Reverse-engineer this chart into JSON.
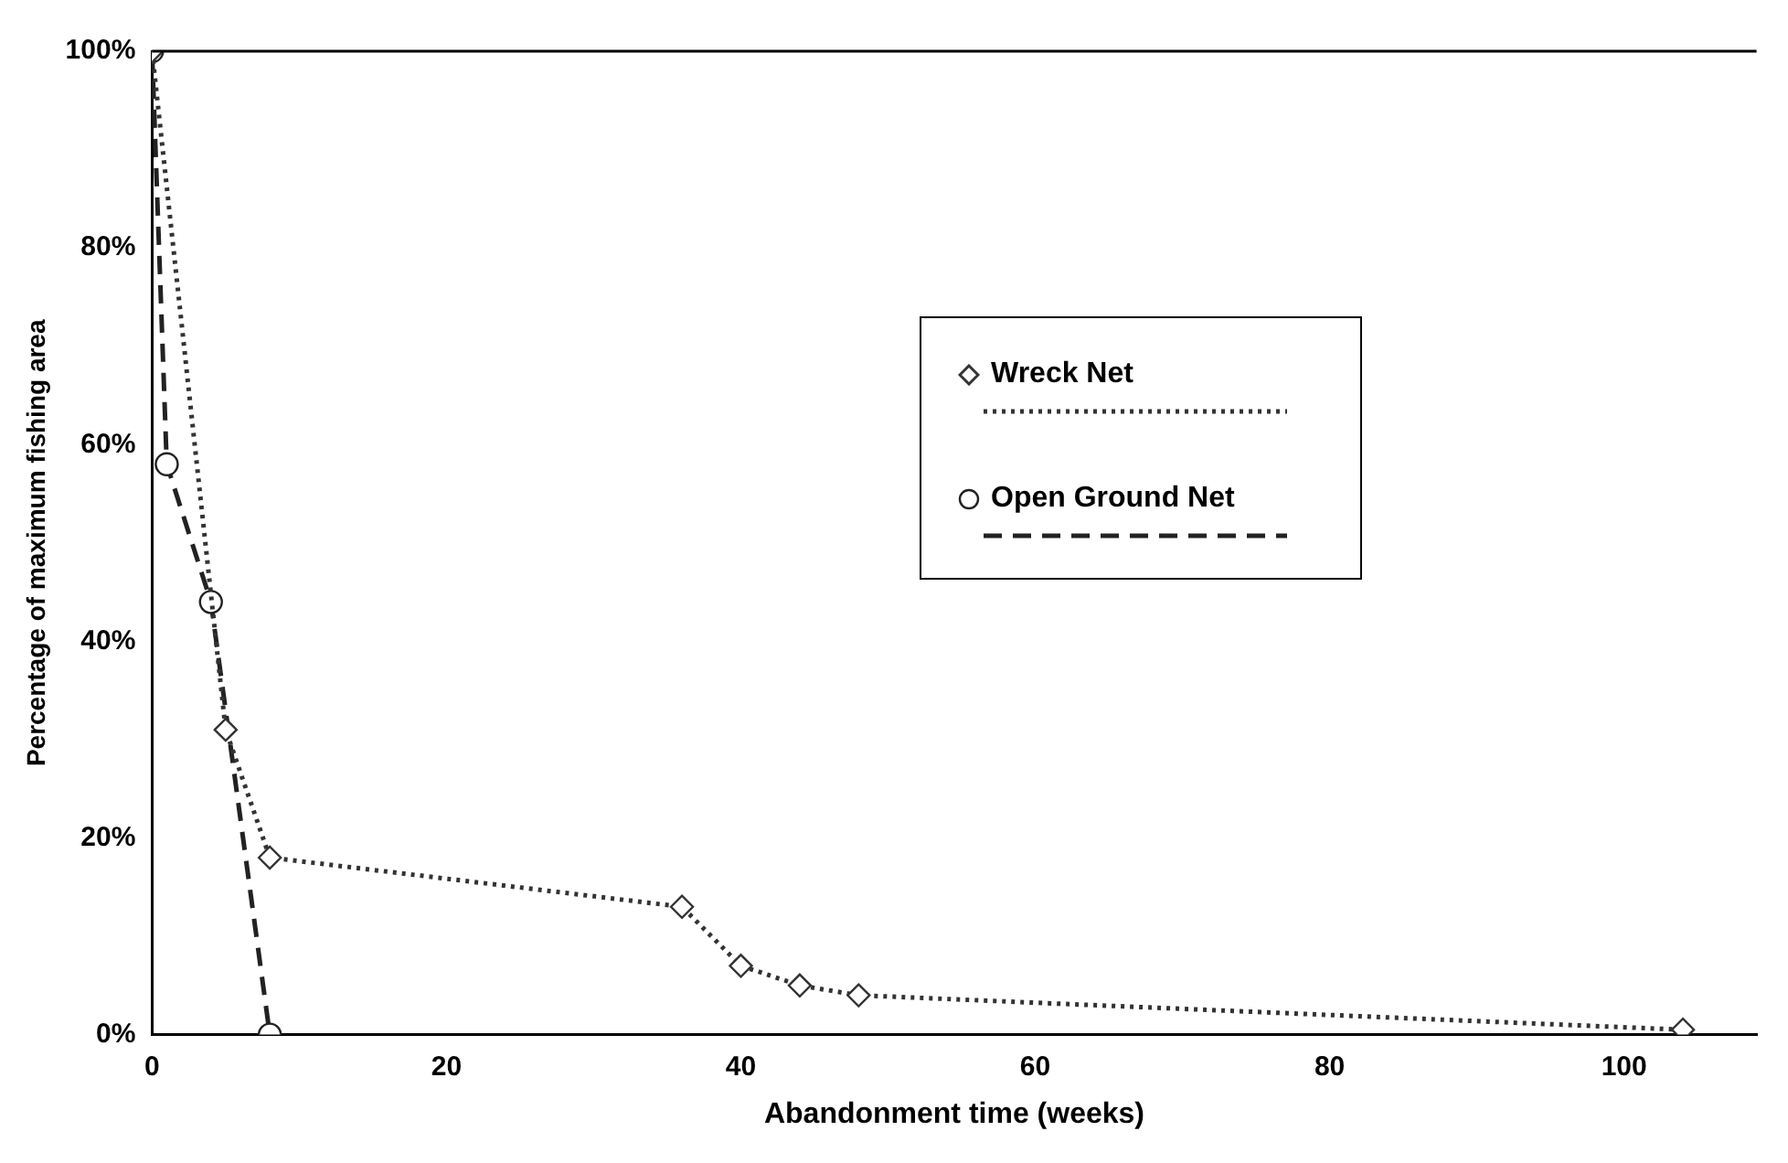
{
  "chart_data": {
    "type": "line",
    "xlabel": "Abandonment time (weeks)",
    "ylabel": "Percentage of maximum fishing area",
    "xlim": [
      0,
      109
    ],
    "xticks": [
      0,
      20,
      40,
      60,
      80,
      100
    ],
    "ylim": [
      0,
      100
    ],
    "yticks": [
      {
        "value": 0,
        "label": "0%"
      },
      {
        "value": 20,
        "label": "20%"
      },
      {
        "value": 40,
        "label": "40%"
      },
      {
        "value": 60,
        "label": "60%"
      },
      {
        "value": 80,
        "label": "80%"
      },
      {
        "value": 100,
        "label": "100%"
      }
    ],
    "grid": false,
    "legend": "right",
    "series": [
      {
        "name": "Wreck Net",
        "color": "#333333",
        "marker": "diamond",
        "line_style": "dotted",
        "x": [
          0,
          5,
          8,
          36,
          40,
          44,
          48,
          104
        ],
        "values": [
          100,
          31,
          18,
          13,
          7,
          5,
          4,
          0.5
        ]
      },
      {
        "name": "Open Ground Net",
        "color": "#222222",
        "marker": "circle",
        "line_style": "dashed",
        "x": [
          0,
          1,
          4,
          8
        ],
        "values": [
          100,
          58,
          44,
          0
        ]
      }
    ]
  }
}
